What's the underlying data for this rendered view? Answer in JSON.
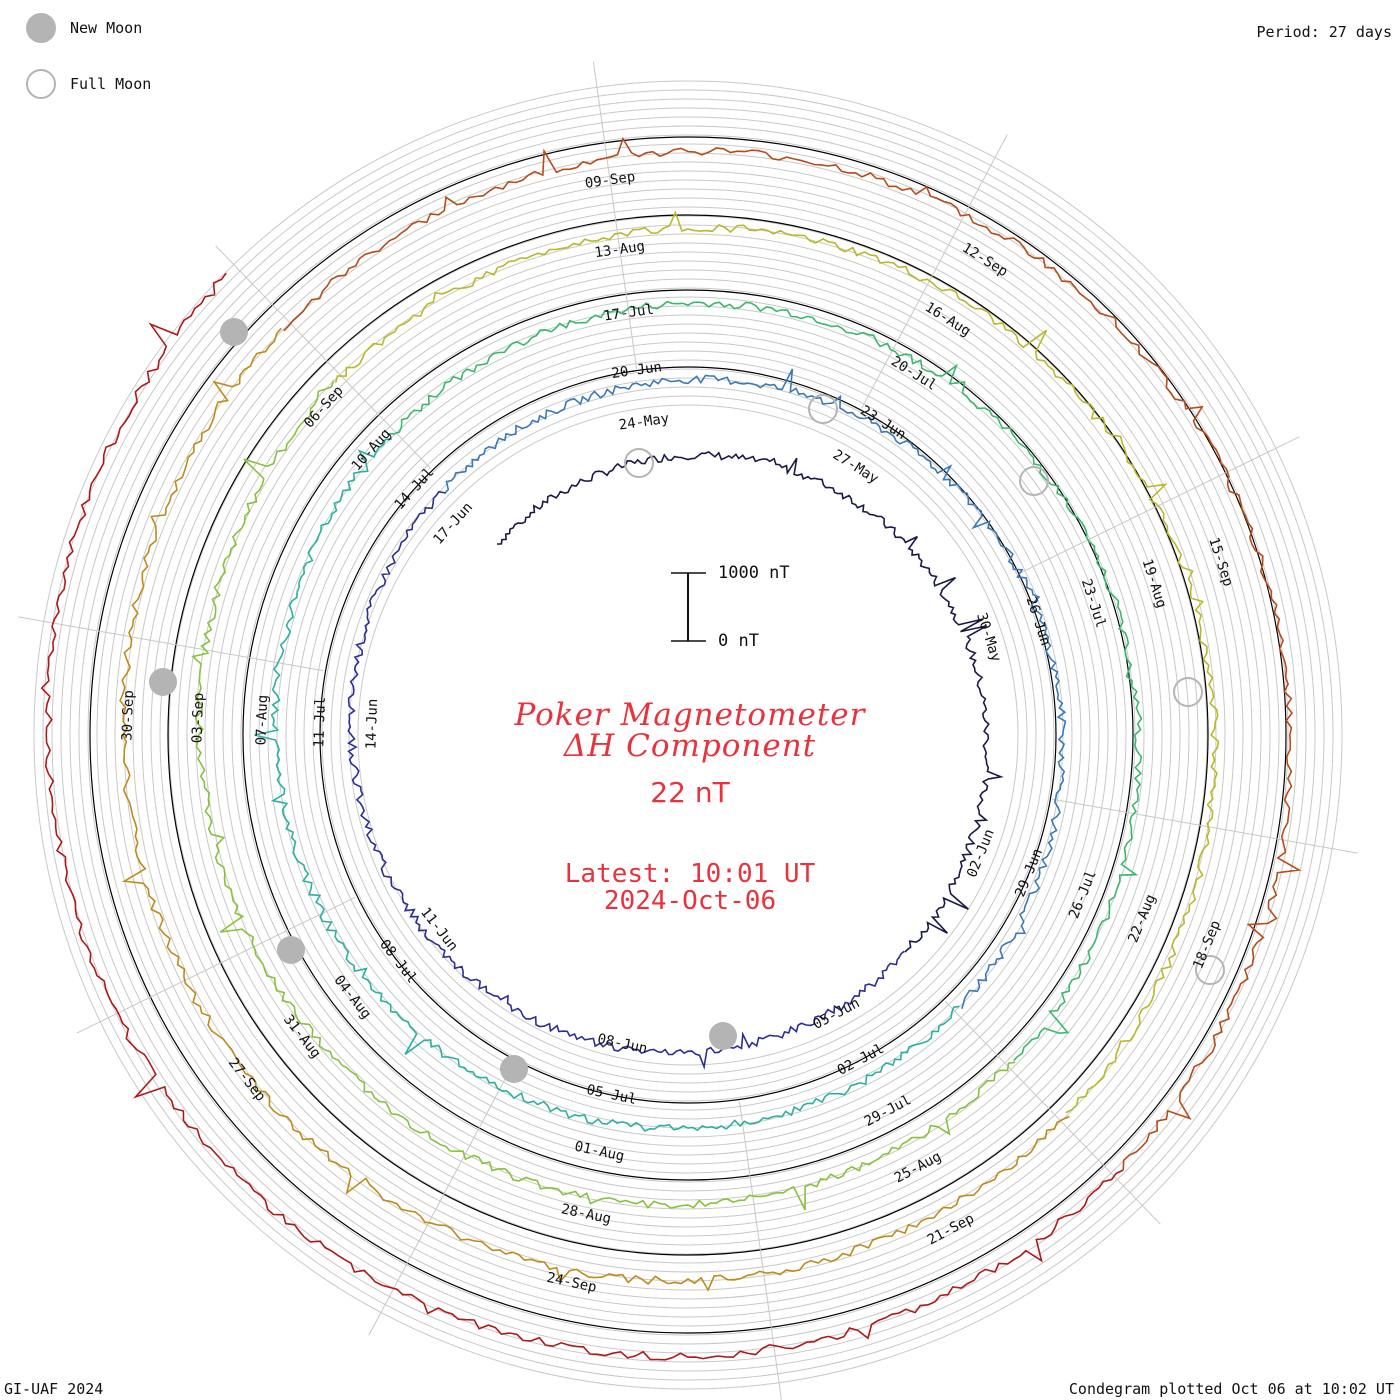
{
  "legend": {
    "new_moon": {
      "label": "New Moon",
      "color": "#b4b4b4"
    },
    "full_moon": {
      "label": "Full Moon",
      "color": "#b4b4b4"
    }
  },
  "header": {
    "period": "Period: 27 days"
  },
  "footer": {
    "credit": "GI-UAF 2024",
    "plotted": "Condegram plotted Oct 06 at 10:02 UT"
  },
  "center": {
    "title_line1": "Poker Magnetometer",
    "title_line2": "ΔH Component",
    "current_value": "22 nT",
    "latest_label": "Latest: 10:01 UT",
    "latest_date": "2024-Oct-06"
  },
  "scale_bar": {
    "top_label": "1000 nT",
    "bottom_label": "0 nT"
  },
  "chart_data": {
    "type": "line",
    "subtype": "condegram spiral",
    "period_days": 27,
    "series": [
      {
        "color": "#1a1a4a",
        "start": "24-May",
        "end": "20-Jun",
        "tick_labels": [
          "24-May",
          "27-May",
          "30-May",
          "02-Jun",
          "05-Jun",
          "08-Jun",
          "11-Jun",
          "14-Jun",
          "17-Jun"
        ]
      },
      {
        "color": "#2c2c9a",
        "start": "20-Jun",
        "end": "17-Jul",
        "tick_labels": [
          "20-Jun",
          "23-Jun",
          "26-Jun",
          "29-Jun",
          "02-Jul",
          "05-Jul",
          "08-Jul",
          "11-Jul",
          "14-Jul"
        ]
      },
      {
        "color": "#2a9ab0",
        "start": "17-Jul",
        "end": "13-Aug",
        "tick_labels": [
          "17-Jul",
          "20-Jul",
          "23-Jul",
          "26-Jul",
          "29-Jul",
          "01-Aug",
          "04-Aug",
          "07-Aug",
          "10-Aug"
        ]
      },
      {
        "color": "#3ab86a",
        "start": "13-Aug",
        "end": "09-Sep",
        "tick_labels": [
          "13-Aug",
          "16-Aug",
          "19-Aug",
          "22-Aug",
          "25-Aug",
          "28-Aug",
          "31-Aug",
          "03-Sep",
          "06-Sep"
        ]
      },
      {
        "color": "#9cb82a",
        "start": "09-Sep",
        "end": "06-Oct",
        "tick_labels": [
          "09-Sep",
          "12-Sep",
          "15-Sep",
          "18-Sep",
          "21-Sep",
          "24-Sep",
          "27-Sep",
          "30-Sep"
        ]
      }
    ],
    "segment_colors": [
      "#1a1a4a",
      "#2c2c9a",
      "#3a78b8",
      "#2ab0a0",
      "#3ab86a",
      "#86c23a",
      "#b8b828",
      "#c08a18",
      "#b84a18",
      "#b01818"
    ],
    "new_moons": [
      "06-Jun",
      "06-Jul",
      "04-Aug",
      "03-Sep",
      "02-Oct"
    ],
    "full_moons": [
      "22-May",
      "21-Jun",
      "21-Jul",
      "19-Aug",
      "18-Sep"
    ],
    "scale_nT": [
      0,
      1000
    ],
    "grid": true,
    "axis_lines_count": 10
  }
}
